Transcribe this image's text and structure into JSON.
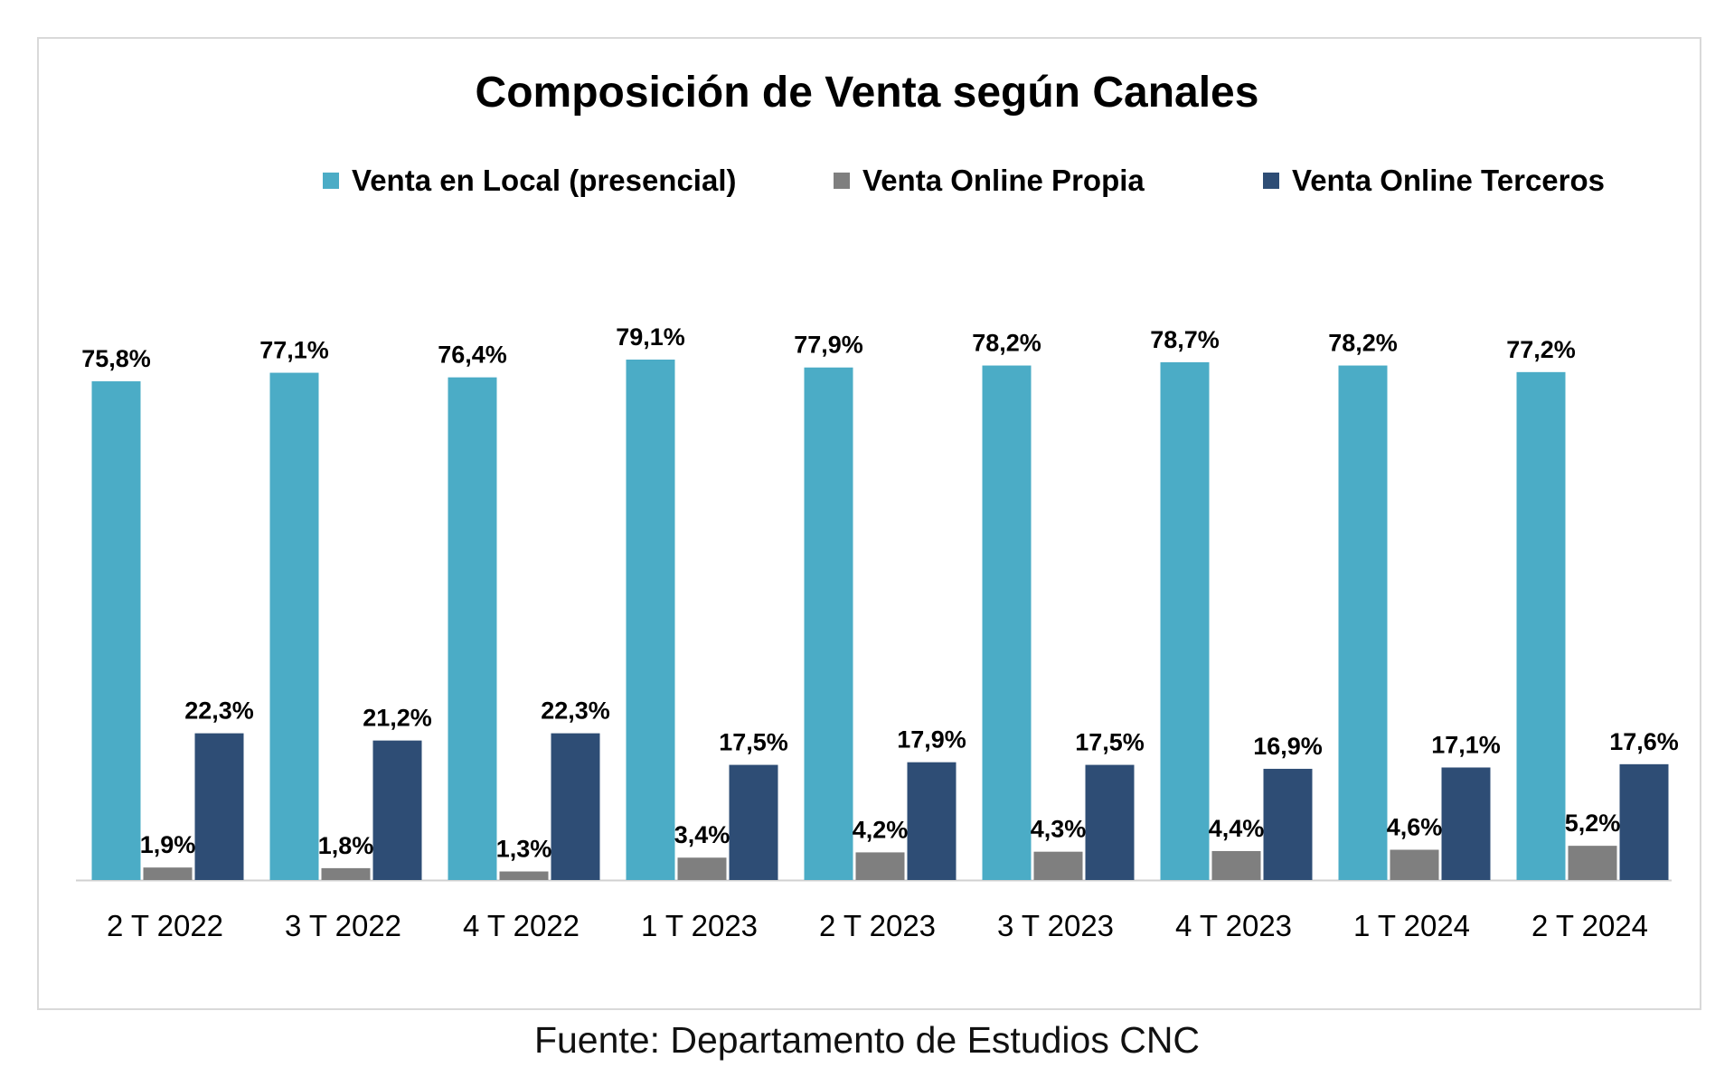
{
  "source_note": "Fuente: Departamento de Estudios CNC",
  "colors": {
    "local": "#4bacc6",
    "propia": "#7f7f7f",
    "terceros": "#2e4d75",
    "axis": "#d0d0d0"
  },
  "chart_data": {
    "type": "bar",
    "title": "Composición de Venta según Canales",
    "xlabel": "",
    "ylabel": "",
    "ylim": [
      0,
      100
    ],
    "grid": false,
    "legend_position": "top",
    "categories": [
      "2 T 2022",
      "3 T 2022",
      "4 T 2022",
      "1 T 2023",
      "2 T 2023",
      "3 T 2023",
      "4 T 2023",
      "1 T 2024",
      "2 T 2024"
    ],
    "series": [
      {
        "name": "Venta en Local (presencial)",
        "color": "#4bacc6",
        "values": [
          75.8,
          77.1,
          76.4,
          79.1,
          77.9,
          78.2,
          78.7,
          78.2,
          77.2
        ],
        "labels": [
          "75,8%",
          "77,1%",
          "76,4%",
          "79,1%",
          "77,9%",
          "78,2%",
          "78,7%",
          "78,2%",
          "77,2%"
        ]
      },
      {
        "name": "Venta  Online Propia",
        "color": "#7f7f7f",
        "values": [
          1.9,
          1.8,
          1.3,
          3.4,
          4.2,
          4.3,
          4.4,
          4.6,
          5.2
        ],
        "labels": [
          "1,9%",
          "1,8%",
          "1,3%",
          "3,4%",
          "4,2%",
          "4,3%",
          "4,4%",
          "4,6%",
          "5,2%"
        ]
      },
      {
        "name": "Venta  Online Terceros",
        "color": "#2e4d75",
        "values": [
          22.3,
          21.2,
          22.3,
          17.5,
          17.9,
          17.5,
          16.9,
          17.1,
          17.6
        ],
        "labels": [
          "22,3%",
          "21,2%",
          "22,3%",
          "17,5%",
          "17,9%",
          "17,5%",
          "16,9%",
          "17,1%",
          "17,6%"
        ]
      }
    ]
  }
}
